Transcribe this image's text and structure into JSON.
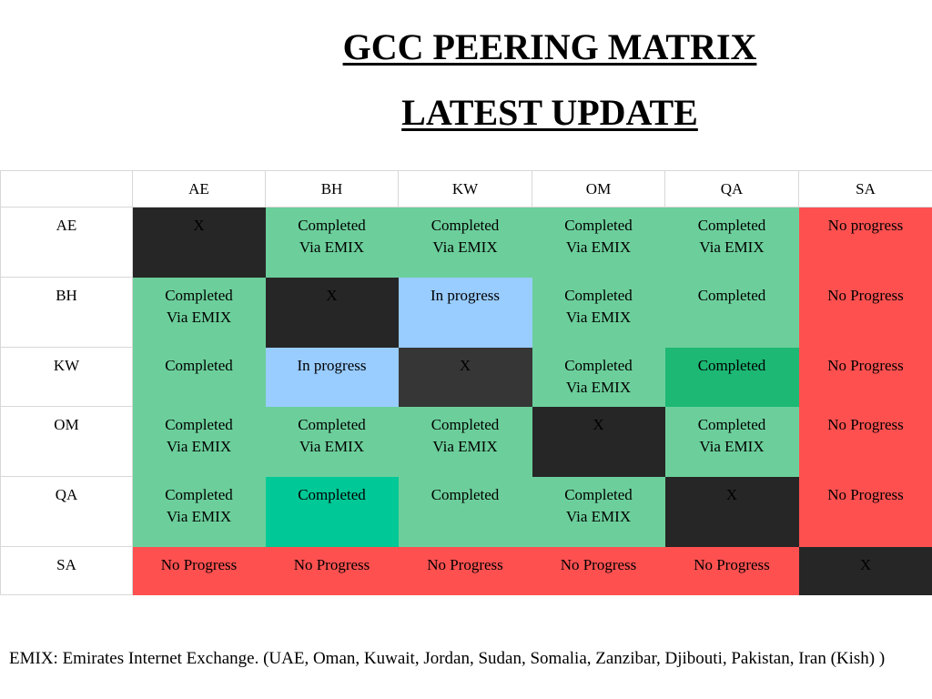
{
  "title": "GCC PEERING MATRIX",
  "subtitle": "LATEST UPDATE",
  "colors": {
    "x": "#262626",
    "completed_via_emix": "#6ccf9b",
    "completed_alt": "#1db874",
    "completed_alt2": "#00c896",
    "in_progress": "#99ccff",
    "no_progress": "#ff5050"
  },
  "matrix": {
    "corner": "",
    "columns": [
      "AE",
      "BH",
      "KW",
      "OM",
      "QA",
      "SA"
    ],
    "rows": [
      {
        "label": "AE",
        "cells": [
          {
            "text": "X",
            "status": "x"
          },
          {
            "text": "Completed\nVia EMIX",
            "status": "green"
          },
          {
            "text": "Completed\nVia EMIX",
            "status": "green"
          },
          {
            "text": "Completed\nVia EMIX",
            "status": "green"
          },
          {
            "text": "Completed\nVia EMIX",
            "status": "green"
          },
          {
            "text": "No progress",
            "status": "red"
          }
        ]
      },
      {
        "label": "BH",
        "cells": [
          {
            "text": "Completed\nVia EMIX",
            "status": "green"
          },
          {
            "text": "X",
            "status": "x"
          },
          {
            "text": "In progress",
            "status": "blue"
          },
          {
            "text": "Completed\nVia EMIX",
            "status": "green"
          },
          {
            "text": "Completed",
            "status": "green"
          },
          {
            "text": "No Progress",
            "status": "red"
          }
        ]
      },
      {
        "label": "KW",
        "cells": [
          {
            "text": "Completed",
            "status": "green"
          },
          {
            "text": "In progress",
            "status": "blue"
          },
          {
            "text": "X",
            "status": "xg"
          },
          {
            "text": "Completed\nVia EMIX",
            "status": "green"
          },
          {
            "text": "Completed",
            "status": "green2"
          },
          {
            "text": "No Progress",
            "status": "red"
          }
        ]
      },
      {
        "label": "OM",
        "cells": [
          {
            "text": "Completed\nVia EMIX",
            "status": "green"
          },
          {
            "text": "Completed\nVia EMIX",
            "status": "green"
          },
          {
            "text": "Completed\nVia EMIX",
            "status": "green"
          },
          {
            "text": "X",
            "status": "x"
          },
          {
            "text": "Completed\nVia EMIX",
            "status": "green"
          },
          {
            "text": "No Progress",
            "status": "red"
          }
        ]
      },
      {
        "label": "QA",
        "cells": [
          {
            "text": "Completed\nVia EMIX",
            "status": "green"
          },
          {
            "text": "Completed",
            "status": "green3"
          },
          {
            "text": "Completed",
            "status": "green"
          },
          {
            "text": "Completed\nVia EMIX",
            "status": "green"
          },
          {
            "text": "X",
            "status": "x"
          },
          {
            "text": "No Progress",
            "status": "red"
          }
        ]
      },
      {
        "label": "SA",
        "cells": [
          {
            "text": "No Progress",
            "status": "red"
          },
          {
            "text": "No Progress",
            "status": "red"
          },
          {
            "text": "No Progress",
            "status": "red"
          },
          {
            "text": "No Progress",
            "status": "red"
          },
          {
            "text": "No Progress",
            "status": "red"
          },
          {
            "text": "X",
            "status": "x"
          }
        ]
      }
    ]
  },
  "footnote": "EMIX: Emirates Internet Exchange. (UAE, Oman, Kuwait, Jordan, Sudan, Somalia, Zanzibar, Djibouti, Pakistan, Iran (Kish) )"
}
